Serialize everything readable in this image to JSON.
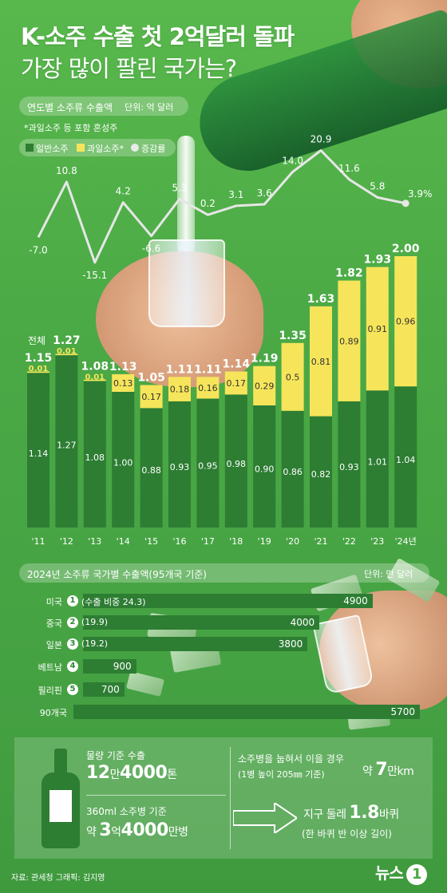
{
  "title": {
    "line1_brand": "K-소주",
    "line1_rest": " 수출 첫 2억달러 돌파",
    "line2": "가장 많이 팔린 국가는?"
  },
  "annual_chart": {
    "heading": "연도별 소주류 수출액",
    "unit": "단위: 억 달러",
    "note": "*과일소주 등 포함 혼성주",
    "total_label": "전체",
    "legend": {
      "general": "일반소주",
      "fruit": "과일소주*",
      "rate": "증감률"
    }
  },
  "country_chart": {
    "heading": "2024년 소주류 국가별 수출액(95개국 기준)",
    "unit": "단위: 만 달러"
  },
  "info": {
    "volume_label": "물량 기준 수출",
    "volume_num1": "12",
    "volume_unit1": "만",
    "volume_num2": "4000",
    "volume_unit2": "톤",
    "bottle_label": "360ml 소주병 기준",
    "bottle_prefix": "약 ",
    "bottle_num1": "3",
    "bottle_unit1": "억",
    "bottle_num2": "4000",
    "bottle_unit2": "만병",
    "lay_label1": "소주병을 눕혀서 이을 경우",
    "lay_label2": "(1병 높이 205㎜ 기준)",
    "lay_prefix": "약 ",
    "lay_num": "7",
    "lay_unit": "만km",
    "earth_label": "지구 둘레 ",
    "earth_num": "1.8",
    "earth_unit": "바퀴",
    "earth_note": "(한 바퀴 반 이상 길이)"
  },
  "footer": {
    "source": "자료: 관세청   그래픽: 김지영",
    "logo": "뉴스",
    "logo_one": "1"
  },
  "colors": {
    "background": "#4aa845",
    "general_soju": "#2d7d33",
    "fruit_soju": "#f6e55a",
    "rate_line": "#e6e6e6"
  },
  "chart_data": [
    {
      "type": "bar",
      "stacked": true,
      "title": "연도별 소주류 수출액",
      "unit": "억 달러",
      "categories": [
        "'11",
        "'12",
        "'13",
        "'14",
        "'15",
        "'16",
        "'17",
        "'18",
        "'19",
        "'20",
        "'21",
        "'22",
        "'23",
        "'24년"
      ],
      "series": [
        {
          "name": "일반소주",
          "values": [
            1.14,
            1.27,
            1.08,
            1.0,
            0.88,
            0.93,
            0.95,
            0.98,
            0.9,
            0.86,
            0.82,
            0.93,
            1.01,
            1.04
          ],
          "labels": [
            "1.14",
            "1.27",
            "1.08",
            "1.00",
            "0.88",
            "0.93",
            "0.95",
            "0.98",
            "0.90",
            "0.86",
            "0.82",
            "0.93",
            "1.01",
            "1.04"
          ]
        },
        {
          "name": "과일소주*",
          "values": [
            0.01,
            0.01,
            0.01,
            0.13,
            0.17,
            0.18,
            0.16,
            0.17,
            0.29,
            0.5,
            0.81,
            0.89,
            0.91,
            0.96
          ],
          "labels": [
            "0.01",
            "0.01",
            "0.01",
            "0.13",
            "0.17",
            "0.18",
            "0.16",
            "0.17",
            "0.29",
            "0.5",
            "0.81",
            "0.89",
            "0.91",
            "0.96"
          ]
        }
      ],
      "totals": [
        1.15,
        1.27,
        1.08,
        1.13,
        1.05,
        1.11,
        1.11,
        1.14,
        1.19,
        1.35,
        1.63,
        1.82,
        1.93,
        2.0
      ],
      "total_labels": [
        "1.15",
        "1.27",
        "1.08",
        "1.13",
        "1.05",
        "1.11",
        "1.11",
        "1.14",
        "1.19",
        "1.35",
        "1.63",
        "1.82",
        "1.93",
        "2.00"
      ],
      "legend": "top-left"
    },
    {
      "type": "line",
      "series_name": "증감률",
      "categories": [
        "'11",
        "'12",
        "'13",
        "'14",
        "'15",
        "'16",
        "'17",
        "'18",
        "'19",
        "'20",
        "'21",
        "'22",
        "'23",
        "'24년"
      ],
      "values": [
        -7.0,
        10.8,
        -15.1,
        4.2,
        -6.6,
        5.3,
        0.2,
        3.1,
        3.6,
        14.0,
        20.9,
        11.6,
        5.8,
        3.9
      ],
      "labels": [
        "-7.0",
        "10.8",
        "-15.1",
        "4.2",
        "-6.6",
        "5.3",
        "0.2",
        "3.1",
        "3.6",
        "14.0",
        "20.9",
        "11.6",
        "5.8",
        "3.9%"
      ]
    },
    {
      "type": "bar",
      "orientation": "horizontal",
      "title": "2024년 소주류 국가별 수출액(95개국 기준)",
      "unit": "만 달러",
      "categories": [
        "미국",
        "중국",
        "일본",
        "베트남",
        "필리핀",
        "90개국"
      ],
      "ranks": [
        "1",
        "2",
        "3",
        "4",
        "5",
        ""
      ],
      "shares": [
        "(수출 비중 24.3)",
        "(19.9)",
        "(19.2)",
        "",
        "",
        ""
      ],
      "values": [
        4900,
        4000,
        3800,
        900,
        700,
        5700
      ],
      "value_labels": [
        "4900",
        "4000",
        "3800",
        "900",
        "700",
        "5700"
      ]
    }
  ]
}
